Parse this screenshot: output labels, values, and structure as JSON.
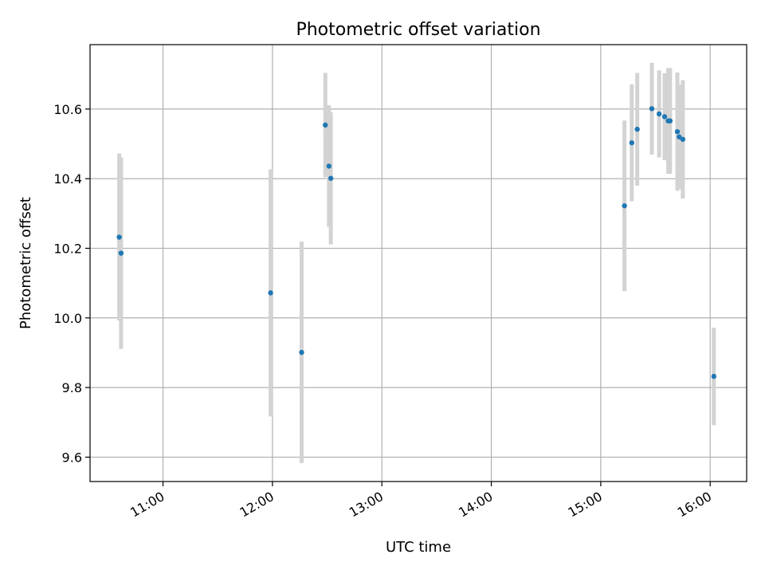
{
  "chart_data": {
    "type": "scatter",
    "title": "Photometric offset variation",
    "xlabel": "UTC time",
    "ylabel": "Photometric offset",
    "xlim": [
      "10:20",
      "16:20"
    ],
    "ylim": [
      9.53,
      10.785
    ],
    "x_ticks": [
      "11:00",
      "12:00",
      "13:00",
      "14:00",
      "15:00",
      "16:00"
    ],
    "y_ticks": [
      9.6,
      9.8,
      10.0,
      10.2,
      10.4,
      10.6
    ],
    "y_tick_labels": [
      "9.6",
      "9.8",
      "10.0",
      "10.2",
      "10.4",
      "10.6"
    ],
    "grid": true,
    "legend": false,
    "colors": {
      "point": "#1f77b4",
      "errorbar": "#d3d3d3",
      "grid": "#b0b0b0",
      "axis": "#000000"
    },
    "points": [
      {
        "t": "10:36",
        "y": 10.232,
        "err": 0.24
      },
      {
        "t": "10:37",
        "y": 10.186,
        "err": 0.275
      },
      {
        "t": "11:59",
        "y": 10.072,
        "err": 0.355
      },
      {
        "t": "12:16",
        "y": 9.901,
        "err": 0.318
      },
      {
        "t": "12:29",
        "y": 10.554,
        "err": 0.15
      },
      {
        "t": "12:31",
        "y": 10.436,
        "err": 0.175
      },
      {
        "t": "12:32",
        "y": 10.401,
        "err": 0.19
      },
      {
        "t": "15:13",
        "y": 10.322,
        "err": 0.245
      },
      {
        "t": "15:17",
        "y": 10.503,
        "err": 0.168
      },
      {
        "t": "15:20",
        "y": 10.542,
        "err": 0.162
      },
      {
        "t": "15:28",
        "y": 10.601,
        "err": 0.132
      },
      {
        "t": "15:32",
        "y": 10.586,
        "err": 0.125
      },
      {
        "t": "15:35",
        "y": 10.578,
        "err": 0.125
      },
      {
        "t": "15:37",
        "y": 10.566,
        "err": 0.152
      },
      {
        "t": "15:38",
        "y": 10.566,
        "err": 0.152
      },
      {
        "t": "15:42",
        "y": 10.535,
        "err": 0.17
      },
      {
        "t": "15:43",
        "y": 10.52,
        "err": 0.15
      },
      {
        "t": "15:45",
        "y": 10.513,
        "err": 0.17
      },
      {
        "t": "16:02",
        "y": 9.832,
        "err": 0.14
      }
    ]
  }
}
